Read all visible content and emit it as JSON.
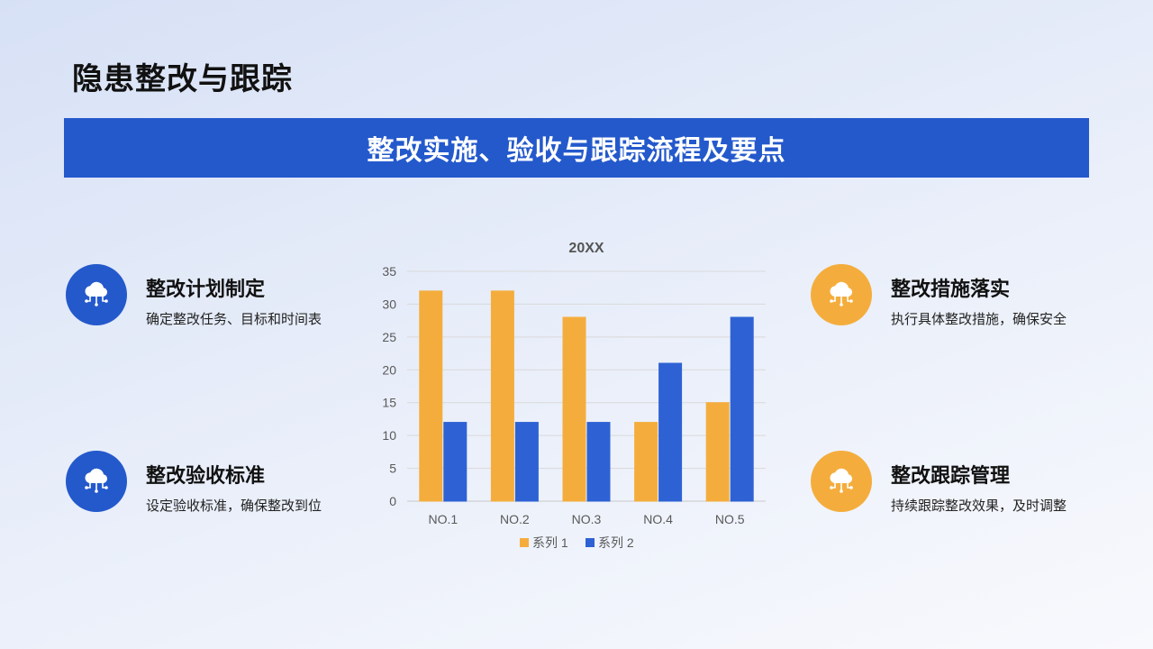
{
  "page": {
    "title": "隐患整改与跟踪"
  },
  "banner": {
    "text": "整改实施、验收与跟踪流程及要点"
  },
  "features": [
    {
      "title": "整改计划制定",
      "desc": "确定整改任务、目标和时间表",
      "icon": "cloud-network-icon",
      "color": "#2459cc"
    },
    {
      "title": "整改验收标准",
      "desc": "设定验收标准，确保整改到位",
      "icon": "cloud-network-icon",
      "color": "#2459cc"
    },
    {
      "title": "整改措施落实",
      "desc": "执行具体整改措施，确保安全",
      "icon": "cloud-network-icon",
      "color": "#f4ad3d"
    },
    {
      "title": "整改跟踪管理",
      "desc": "持续跟踪整改效果，及时调整",
      "icon": "cloud-network-icon",
      "color": "#f4ad3d"
    }
  ],
  "chart_data": {
    "type": "bar",
    "title": "20XX",
    "categories": [
      "NO.1",
      "NO.2",
      "NO.3",
      "NO.4",
      "NO.5"
    ],
    "series": [
      {
        "name": "系列 1",
        "values": [
          32,
          32,
          28,
          12,
          15
        ],
        "color": "#f4ad3d"
      },
      {
        "name": "系列 2",
        "values": [
          12,
          12,
          12,
          21,
          28
        ],
        "color": "#2e62d4"
      }
    ],
    "ylim": [
      0,
      35
    ],
    "yticks": [
      "0",
      "5",
      "10",
      "15",
      "20",
      "25",
      "30",
      "35"
    ],
    "grid": true,
    "legend": "bottom"
  }
}
